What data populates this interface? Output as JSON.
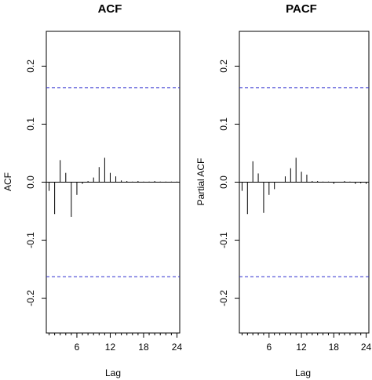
{
  "chart_data": [
    {
      "type": "bar",
      "title": "ACF",
      "xlabel": "Lag",
      "ylabel": "ACF",
      "x_ticks": [
        6,
        12,
        18,
        24
      ],
      "y_ticks": [
        -0.2,
        -0.1,
        0.0,
        0.1,
        0.2
      ],
      "y_tick_labels": [
        "-0.2",
        "-0.1",
        "0.0",
        "0.1",
        "0.2"
      ],
      "ylim": [
        -0.26,
        0.26
      ],
      "xlim": [
        0.5,
        24.5
      ],
      "conf_bound": 0.163,
      "conf_color": "#2f2fcf",
      "lags": [
        1,
        2,
        3,
        4,
        5,
        6,
        7,
        8,
        9,
        10,
        11,
        12,
        13,
        14,
        15,
        16,
        17,
        18,
        19,
        20,
        21,
        22,
        23,
        24
      ],
      "values": [
        -0.015,
        -0.055,
        0.038,
        0.016,
        -0.06,
        -0.022,
        -0.003,
        0.002,
        0.008,
        0.026,
        0.042,
        0.016,
        0.01,
        0.003,
        0.002,
        0.001,
        0.002,
        0.001,
        0.001,
        0.002,
        0.001,
        0.001,
        0.001,
        0.001
      ]
    },
    {
      "type": "bar",
      "title": "PACF",
      "xlabel": "Lag",
      "ylabel": "Partial ACF",
      "x_ticks": [
        6,
        12,
        18,
        24
      ],
      "y_ticks": [
        -0.2,
        -0.1,
        0.0,
        0.1,
        0.2
      ],
      "y_tick_labels": [
        "-0.2",
        "-0.1",
        "0.0",
        "0.1",
        "0.2"
      ],
      "ylim": [
        -0.26,
        0.26
      ],
      "xlim": [
        0.5,
        24.5
      ],
      "conf_bound": 0.163,
      "conf_color": "#2f2fcf",
      "lags": [
        1,
        2,
        3,
        4,
        5,
        6,
        7,
        8,
        9,
        10,
        11,
        12,
        13,
        14,
        15,
        16,
        17,
        18,
        19,
        20,
        21,
        22,
        23,
        24
      ],
      "values": [
        -0.015,
        -0.055,
        0.036,
        0.015,
        -0.053,
        -0.022,
        -0.012,
        0.0,
        0.01,
        0.024,
        0.042,
        0.018,
        0.013,
        0.002,
        0.002,
        0.001,
        0.001,
        -0.003,
        0.0,
        0.002,
        0.001,
        -0.003,
        -0.002,
        -0.003
      ]
    }
  ]
}
